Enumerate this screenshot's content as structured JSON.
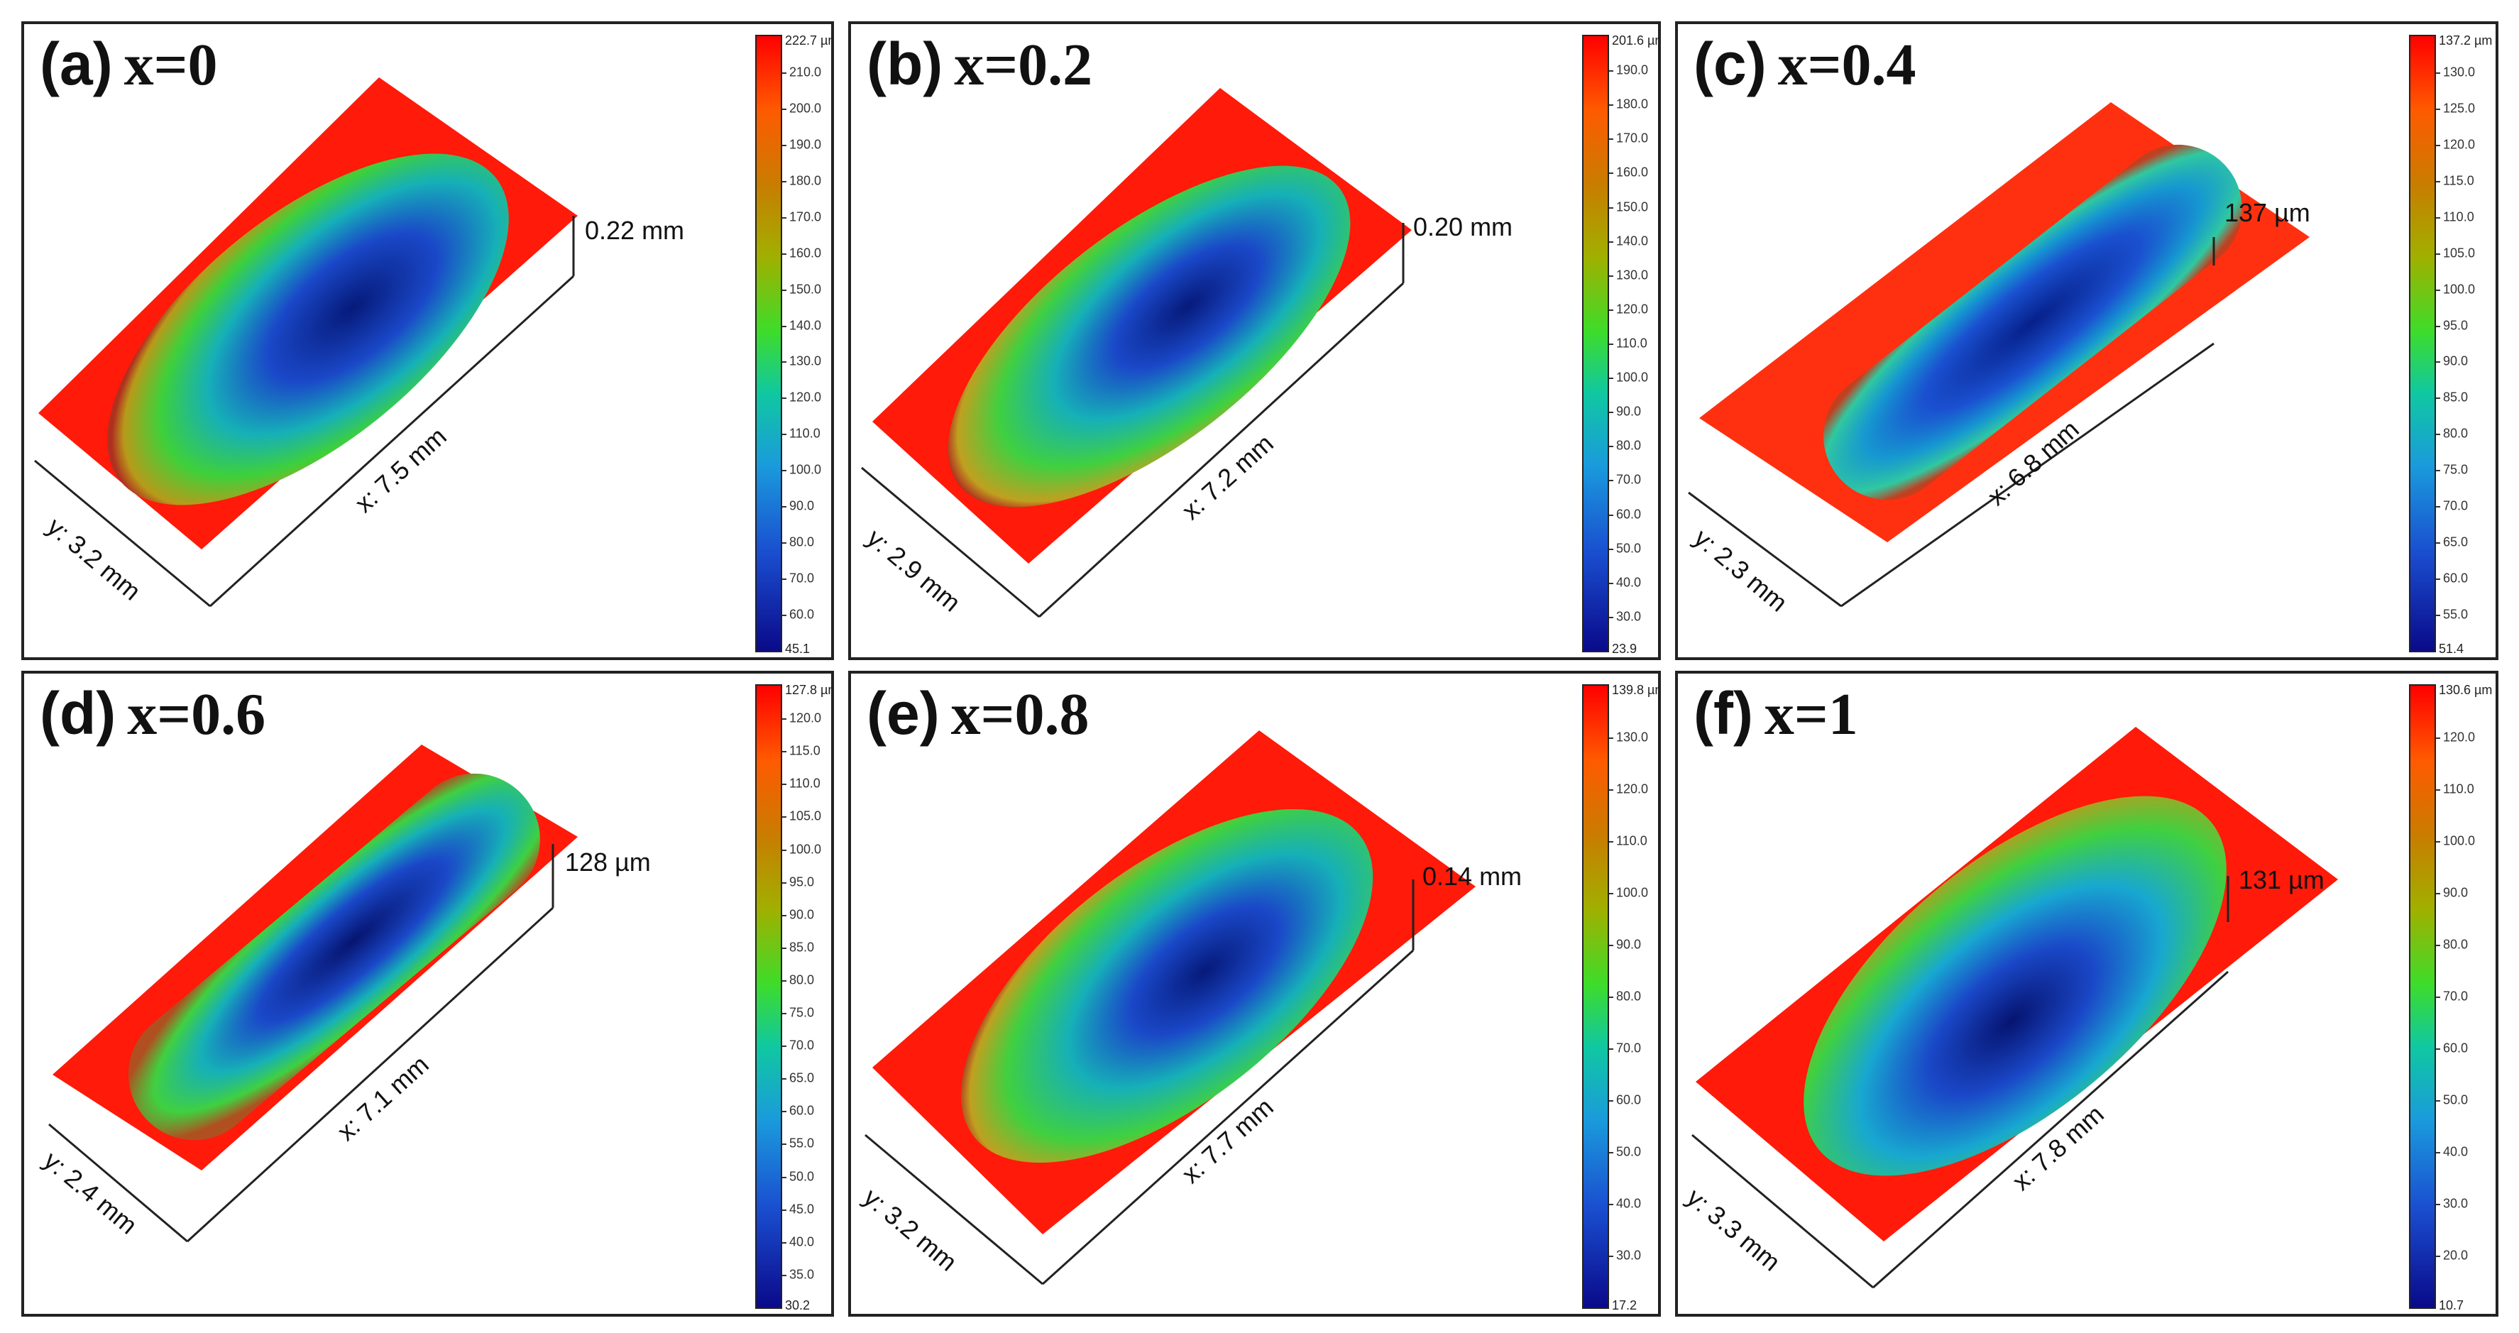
{
  "panels": [
    {
      "id": "a",
      "letter": "(a)",
      "composition": "x=0",
      "height": "0.22 mm",
      "x_length": "x: 7.5 mm",
      "y_length": "y: 3.2 mm",
      "colorbar": {
        "max": "222.7 µm",
        "min": "45.1",
        "ticks": [
          "210.0",
          "200.0",
          "190.0",
          "180.0",
          "170.0",
          "160.0",
          "150.0",
          "140.0",
          "130.0",
          "120.0",
          "110.0",
          "100.0",
          "90.0",
          "80.0",
          "70.0",
          "60.0"
        ]
      }
    },
    {
      "id": "b",
      "letter": "(b)",
      "composition": "x=0.2",
      "height": "0.20 mm",
      "x_length": "x: 7.2 mm",
      "y_length": "y: 2.9 mm",
      "colorbar": {
        "max": "201.6 µm",
        "min": "23.9",
        "ticks": [
          "190.0",
          "180.0",
          "170.0",
          "160.0",
          "150.0",
          "140.0",
          "130.0",
          "120.0",
          "110.0",
          "100.0",
          "90.0",
          "80.0",
          "70.0",
          "60.0",
          "50.0",
          "40.0",
          "30.0"
        ]
      }
    },
    {
      "id": "c",
      "letter": "(c)",
      "composition": "x=0.4",
      "height": "137 µm",
      "x_length": "x: 6.8 mm",
      "y_length": "y: 2.3 mm",
      "colorbar": {
        "max": "137.2 µm",
        "min": "51.4",
        "ticks": [
          "130.0",
          "125.0",
          "120.0",
          "115.0",
          "110.0",
          "105.0",
          "100.0",
          "95.0",
          "90.0",
          "85.0",
          "80.0",
          "75.0",
          "70.0",
          "65.0",
          "60.0",
          "55.0"
        ]
      }
    },
    {
      "id": "d",
      "letter": "(d)",
      "composition": "x=0.6",
      "height": "128 µm",
      "x_length": "x: 7.1 mm",
      "y_length": "y: 2.4 mm",
      "colorbar": {
        "max": "127.8 µm",
        "min": "30.2",
        "ticks": [
          "120.0",
          "115.0",
          "110.0",
          "105.0",
          "100.0",
          "95.0",
          "90.0",
          "85.0",
          "80.0",
          "75.0",
          "70.0",
          "65.0",
          "60.0",
          "55.0",
          "50.0",
          "45.0",
          "40.0",
          "35.0"
        ]
      }
    },
    {
      "id": "e",
      "letter": "(e)",
      "composition": "x=0.8",
      "height": "0.14 mm",
      "x_length": "x: 7.7 mm",
      "y_length": "y: 3.2 mm",
      "colorbar": {
        "max": "139.8 µm",
        "min": "17.2",
        "ticks": [
          "130.0",
          "120.0",
          "110.0",
          "100.0",
          "90.0",
          "80.0",
          "70.0",
          "60.0",
          "50.0",
          "40.0",
          "30.0"
        ]
      }
    },
    {
      "id": "f",
      "letter": "(f)",
      "composition": "x=1",
      "height": "131 µm",
      "x_length": "x: 7.8 mm",
      "y_length": "y: 3.3 mm",
      "colorbar": {
        "max": "130.6 µm",
        "min": "10.7",
        "ticks": [
          "120.0",
          "110.0",
          "100.0",
          "90.0",
          "80.0",
          "70.0",
          "60.0",
          "50.0",
          "40.0",
          "30.0",
          "20.0"
        ]
      }
    }
  ]
}
